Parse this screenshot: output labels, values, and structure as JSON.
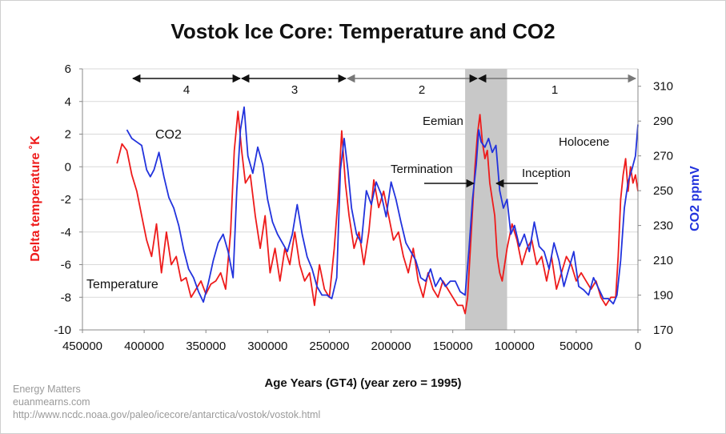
{
  "chart_data": {
    "type": "line",
    "title": "Vostok Ice Core: Temperature and CO2",
    "xlabel": "Age Years (GT4) (year zero = 1995)",
    "ylabel_left": "Delta temperature ˚K",
    "ylabel_right": "CO2 ppmV",
    "xlim": [
      450000,
      0
    ],
    "ylim_left": [
      -10,
      6
    ],
    "ylim_right": [
      170,
      320
    ],
    "x_ticks": [
      450000,
      400000,
      350000,
      300000,
      250000,
      200000,
      150000,
      100000,
      50000,
      0
    ],
    "y_left_ticks": [
      -10,
      -8,
      -6,
      -4,
      -2,
      0,
      2,
      4,
      6
    ],
    "y_right_ticks": [
      170,
      190,
      210,
      230,
      250,
      270,
      290,
      310
    ],
    "series": [
      {
        "name": "Temperature",
        "axis": "left",
        "color": "#ee1b1b",
        "x": [
          422000,
          418000,
          414000,
          410000,
          406000,
          402000,
          398000,
          394000,
          390000,
          386000,
          382000,
          378000,
          374000,
          370000,
          366000,
          362000,
          358000,
          354000,
          350000,
          346000,
          342000,
          338000,
          334000,
          330000,
          327000,
          324000,
          321000,
          318000,
          314000,
          310000,
          306000,
          302000,
          298000,
          294000,
          290000,
          286000,
          282000,
          278000,
          274000,
          270000,
          266000,
          262000,
          258000,
          254000,
          250000,
          246000,
          243000,
          240000,
          237000,
          234000,
          230000,
          226000,
          222000,
          218000,
          214000,
          210000,
          206000,
          202000,
          198000,
          194000,
          190000,
          186000,
          182000,
          178000,
          174000,
          170000,
          166000,
          162000,
          158000,
          154000,
          150000,
          146000,
          142000,
          140000,
          138000,
          135000,
          132000,
          130000,
          128000,
          126000,
          124000,
          122000,
          120000,
          118000,
          116000,
          114000,
          112000,
          110000,
          106000,
          102000,
          98000,
          94000,
          90000,
          86000,
          82000,
          78000,
          74000,
          70000,
          66000,
          62000,
          58000,
          54000,
          50000,
          46000,
          42000,
          38000,
          34000,
          30000,
          26000,
          22000,
          18000,
          16000,
          14000,
          12000,
          10000,
          8000,
          6000,
          4000,
          2000,
          0
        ],
        "values": [
          0.2,
          1.4,
          1.0,
          -0.5,
          -1.5,
          -3.0,
          -4.5,
          -5.5,
          -3.5,
          -6.5,
          -4.0,
          -6.0,
          -5.5,
          -7.0,
          -6.8,
          -8.0,
          -7.5,
          -7.0,
          -7.8,
          -7.2,
          -7.0,
          -6.5,
          -7.5,
          -4.0,
          1.0,
          3.4,
          1.0,
          -1.0,
          -0.5,
          -3.0,
          -5.0,
          -3.0,
          -6.5,
          -5.0,
          -7.0,
          -5.0,
          -6.0,
          -4.0,
          -6.0,
          -7.0,
          -6.5,
          -8.5,
          -6.0,
          -7.5,
          -8.0,
          -5.0,
          -2.0,
          2.2,
          -1.0,
          -3.0,
          -5.0,
          -4.0,
          -6.0,
          -4.0,
          -0.8,
          -2.5,
          -1.5,
          -3.0,
          -4.5,
          -4.0,
          -5.5,
          -6.5,
          -5.0,
          -7.0,
          -8.0,
          -6.5,
          -7.5,
          -8.0,
          -7.0,
          -7.5,
          -8.0,
          -8.5,
          -8.5,
          -9.0,
          -8.0,
          -4.0,
          0.0,
          2.0,
          3.2,
          1.5,
          0.5,
          1.0,
          -1.0,
          -2.0,
          -3.0,
          -5.5,
          -6.5,
          -7.0,
          -5.0,
          -3.5,
          -4.5,
          -6.0,
          -5.0,
          -4.5,
          -6.0,
          -5.5,
          -7.0,
          -5.5,
          -7.5,
          -6.5,
          -5.5,
          -6.0,
          -7.0,
          -6.5,
          -7.0,
          -7.5,
          -7.0,
          -8.0,
          -8.5,
          -8.0,
          -8.0,
          -5.5,
          -2.0,
          -0.5,
          0.5,
          -1.5,
          0.0,
          -1.0,
          -0.5,
          -1.5
        ]
      },
      {
        "name": "CO2",
        "axis": "right",
        "color": "#2233dd",
        "x": [
          414000,
          410000,
          406000,
          402000,
          398000,
          395000,
          392000,
          388000,
          384000,
          380000,
          376000,
          372000,
          368000,
          364000,
          360000,
          356000,
          352000,
          348000,
          344000,
          340000,
          336000,
          332000,
          328000,
          325000,
          322000,
          319000,
          316000,
          312000,
          308000,
          304000,
          300000,
          296000,
          292000,
          288000,
          284000,
          280000,
          276000,
          272000,
          268000,
          264000,
          260000,
          256000,
          252000,
          248000,
          244000,
          241000,
          238000,
          235000,
          232000,
          228000,
          224000,
          220000,
          216000,
          212000,
          208000,
          204000,
          200000,
          196000,
          192000,
          188000,
          184000,
          180000,
          176000,
          172000,
          168000,
          164000,
          160000,
          156000,
          152000,
          148000,
          144000,
          140000,
          137000,
          134000,
          131000,
          129000,
          127000,
          124000,
          121000,
          118000,
          115000,
          112000,
          109000,
          106000,
          103000,
          100000,
          96000,
          92000,
          88000,
          84000,
          80000,
          76000,
          72000,
          68000,
          64000,
          60000,
          56000,
          52000,
          48000,
          44000,
          40000,
          36000,
          32000,
          28000,
          24000,
          20000,
          17000,
          14000,
          11000,
          8000,
          5000,
          2000,
          0
        ],
        "values": [
          285,
          280,
          278,
          276,
          262,
          258,
          262,
          272,
          258,
          246,
          240,
          230,
          216,
          205,
          200,
          192,
          186,
          197,
          210,
          220,
          225,
          215,
          200,
          250,
          285,
          298,
          270,
          260,
          275,
          265,
          245,
          232,
          225,
          220,
          215,
          225,
          242,
          225,
          212,
          205,
          195,
          190,
          190,
          188,
          200,
          262,
          280,
          262,
          240,
          225,
          220,
          250,
          242,
          255,
          248,
          235,
          255,
          245,
          232,
          220,
          215,
          210,
          200,
          198,
          205,
          195,
          200,
          195,
          198,
          198,
          192,
          190,
          215,
          245,
          265,
          285,
          278,
          275,
          280,
          272,
          276,
          250,
          240,
          245,
          225,
          230,
          218,
          225,
          215,
          232,
          218,
          215,
          205,
          220,
          210,
          195,
          205,
          215,
          195,
          193,
          190,
          200,
          194,
          188,
          188,
          185,
          190,
          210,
          240,
          255,
          262,
          270,
          288
        ]
      }
    ],
    "stage_labels": [
      "4",
      "3",
      "2",
      "1"
    ],
    "annotations": [
      "Eemian",
      "Holocene",
      "Termination",
      "Inception"
    ],
    "series_labels": [
      "CO2",
      "Temperature"
    ]
  },
  "credits": {
    "line1": "Energy Matters",
    "line2": "euanmearns.com",
    "line3": "http://www.ncdc.noaa.gov/paleo/icecore/antarctica/vostok/vostok.html"
  }
}
